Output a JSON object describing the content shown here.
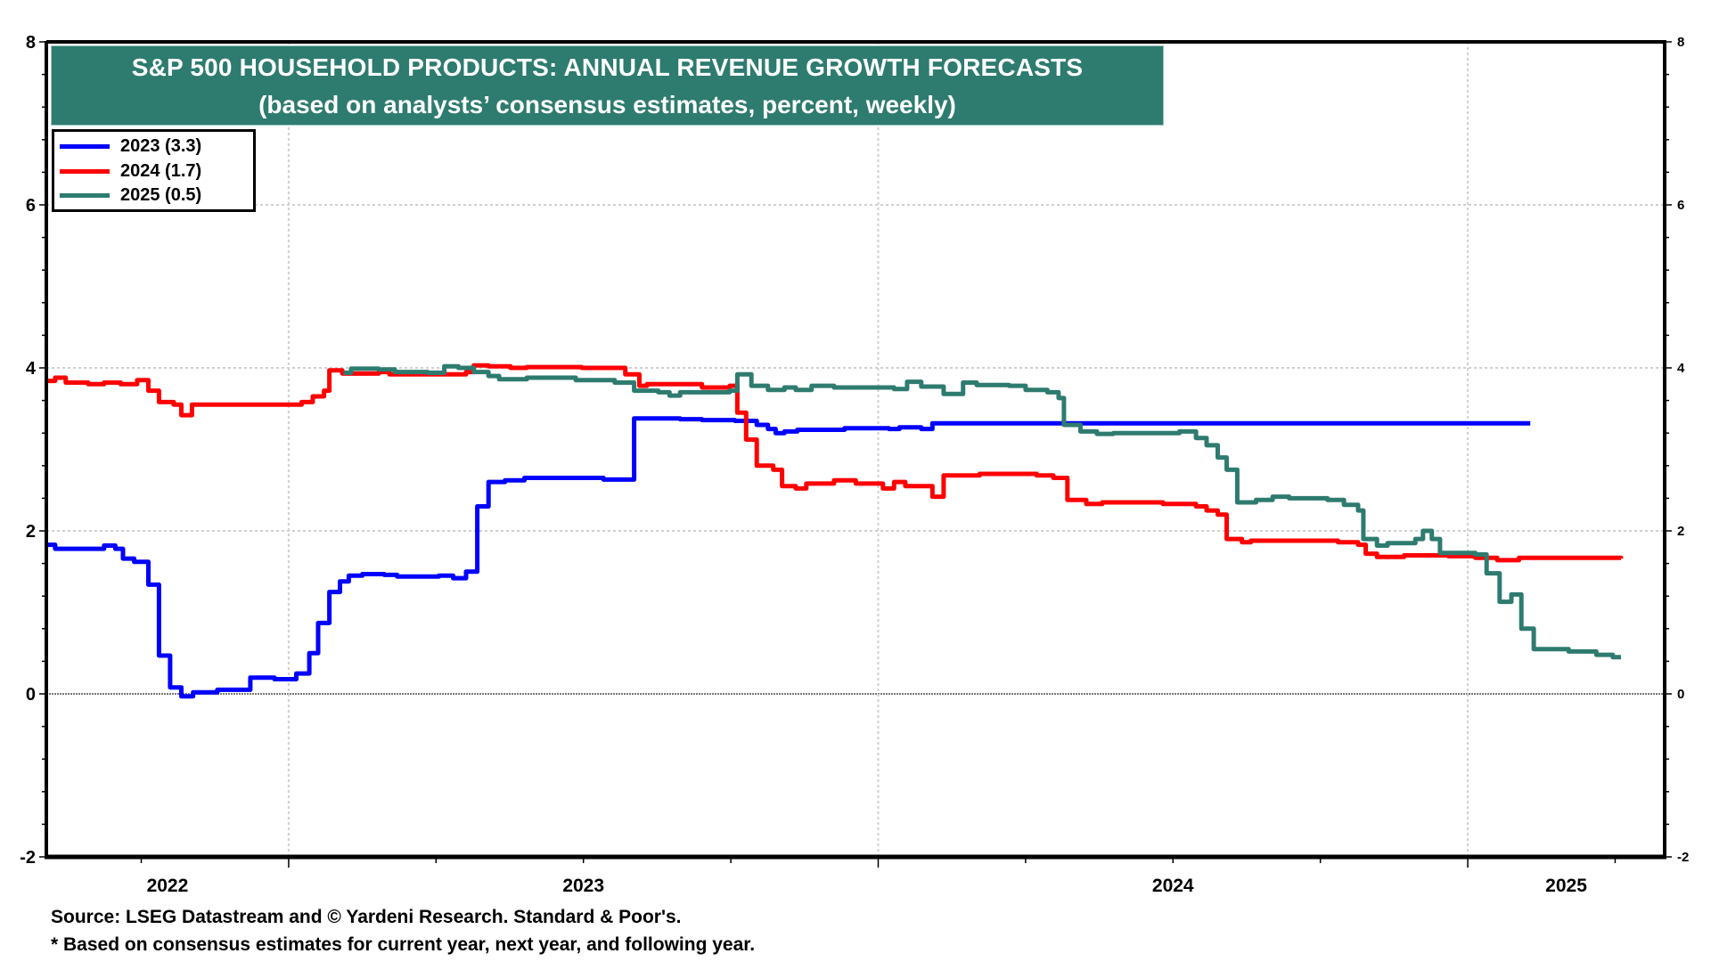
{
  "chart_data": {
    "type": "line",
    "title": "S&P 500 HOUSEHOLD PRODUCTS: ANNUAL REVENUE GROWTH FORECASTS",
    "subtitle": "(based on analysts’ consensus estimates, percent, weekly)",
    "xlabel": "",
    "ylabel": "",
    "x_unit": "year (fractional)",
    "xlim": [
      2022.589,
      2025.334
    ],
    "ylim": [
      -2,
      8
    ],
    "y_ticks": [
      -2,
      0,
      2,
      4,
      6,
      8
    ],
    "y_tick_labels": [
      "-2",
      "0",
      "2",
      "4",
      "6",
      "8"
    ],
    "y_minor_step": 0.4,
    "x_year_boundaries": [
      2023,
      2024,
      2025
    ],
    "x_quarter_ticks": [
      2022.75,
      2023.25,
      2023.5,
      2023.75,
      2024.25,
      2024.5,
      2024.75,
      2025.25
    ],
    "x_tick_labels": [
      {
        "label": "2022",
        "range": [
          2022.589,
          2023.0
        ]
      },
      {
        "label": "2023",
        "range": [
          2023.0,
          2024.0
        ]
      },
      {
        "label": "2024",
        "range": [
          2024.0,
          2025.0
        ]
      },
      {
        "label": "2025",
        "range": [
          2025.0,
          2025.334
        ]
      }
    ],
    "grid": true,
    "zero_line": true,
    "legend_position": "top-left",
    "series": [
      {
        "name": "2023 (3.3)",
        "color": "#0000ff",
        "step": true,
        "points": [
          [
            2022.589,
            1.83
          ],
          [
            2022.604,
            1.78
          ],
          [
            2022.682,
            1.78
          ],
          [
            2022.687,
            1.82
          ],
          [
            2022.702,
            1.82
          ],
          [
            2022.706,
            1.78
          ],
          [
            2022.719,
            1.66
          ],
          [
            2022.738,
            1.62
          ],
          [
            2022.762,
            1.34
          ],
          [
            2022.78,
            0.47
          ],
          [
            2022.799,
            0.08
          ],
          [
            2022.818,
            -0.03
          ],
          [
            2022.838,
            0.02
          ],
          [
            2022.879,
            0.05
          ],
          [
            2022.935,
            0.2
          ],
          [
            2022.976,
            0.18
          ],
          [
            2023.013,
            0.25
          ],
          [
            2023.035,
            0.5
          ],
          [
            2023.05,
            0.87
          ],
          [
            2023.069,
            1.25
          ],
          [
            2023.087,
            1.38
          ],
          [
            2023.102,
            1.45
          ],
          [
            2023.125,
            1.47
          ],
          [
            2023.162,
            1.46
          ],
          [
            2023.184,
            1.44
          ],
          [
            2023.255,
            1.45
          ],
          [
            2023.279,
            1.42
          ],
          [
            2023.301,
            1.5
          ],
          [
            2023.32,
            2.3
          ],
          [
            2023.339,
            2.6
          ],
          [
            2023.367,
            2.62
          ],
          [
            2023.4,
            2.65
          ],
          [
            2023.534,
            2.63
          ],
          [
            2023.586,
            3.38
          ],
          [
            2023.664,
            3.37
          ],
          [
            2023.701,
            3.36
          ],
          [
            2023.757,
            3.35
          ],
          [
            2023.794,
            3.3
          ],
          [
            2023.813,
            3.25
          ],
          [
            2023.826,
            3.2
          ],
          [
            2023.841,
            3.22
          ],
          [
            2023.863,
            3.24
          ],
          [
            2023.943,
            3.26
          ],
          [
            2024.018,
            3.25
          ],
          [
            2024.036,
            3.27
          ],
          [
            2024.073,
            3.25
          ],
          [
            2024.092,
            3.32
          ],
          [
            2025.106,
            3.32
          ]
        ]
      },
      {
        "name": "2024 (1.7)",
        "color": "#ff0000",
        "step": true,
        "points": [
          [
            2022.589,
            3.84
          ],
          [
            2022.604,
            3.88
          ],
          [
            2022.622,
            3.82
          ],
          [
            2022.66,
            3.8
          ],
          [
            2022.687,
            3.82
          ],
          [
            2022.715,
            3.8
          ],
          [
            2022.743,
            3.85
          ],
          [
            2022.762,
            3.72
          ],
          [
            2022.78,
            3.58
          ],
          [
            2022.805,
            3.55
          ],
          [
            2022.818,
            3.42
          ],
          [
            2022.836,
            3.55
          ],
          [
            2023.0,
            3.55
          ],
          [
            2023.022,
            3.58
          ],
          [
            2023.041,
            3.65
          ],
          [
            2023.06,
            3.72
          ],
          [
            2023.069,
            3.97
          ],
          [
            2023.091,
            3.93
          ],
          [
            2023.125,
            3.93
          ],
          [
            2023.153,
            3.95
          ],
          [
            2023.171,
            3.92
          ],
          [
            2023.301,
            3.95
          ],
          [
            2023.314,
            4.03
          ],
          [
            2023.339,
            4.02
          ],
          [
            2023.376,
            4.0
          ],
          [
            2023.404,
            4.01
          ],
          [
            2023.497,
            4.0
          ],
          [
            2023.571,
            3.92
          ],
          [
            2023.595,
            3.78
          ],
          [
            2023.608,
            3.8
          ],
          [
            2023.701,
            3.76
          ],
          [
            2023.748,
            3.78
          ],
          [
            2023.761,
            3.45
          ],
          [
            2023.776,
            3.12
          ],
          [
            2023.794,
            2.8
          ],
          [
            2023.822,
            2.75
          ],
          [
            2023.837,
            2.55
          ],
          [
            2023.86,
            2.52
          ],
          [
            2023.878,
            2.58
          ],
          [
            2023.925,
            2.62
          ],
          [
            2023.962,
            2.58
          ],
          [
            2024.008,
            2.52
          ],
          [
            2024.027,
            2.6
          ],
          [
            2024.046,
            2.55
          ],
          [
            2024.092,
            2.42
          ],
          [
            2024.111,
            2.68
          ],
          [
            2024.148,
            2.68
          ],
          [
            2024.172,
            2.7
          ],
          [
            2024.269,
            2.68
          ],
          [
            2024.297,
            2.65
          ],
          [
            2024.321,
            2.38
          ],
          [
            2024.353,
            2.33
          ],
          [
            2024.38,
            2.35
          ],
          [
            2024.483,
            2.33
          ],
          [
            2024.539,
            2.3
          ],
          [
            2024.557,
            2.25
          ],
          [
            2024.576,
            2.2
          ],
          [
            2024.591,
            1.9
          ],
          [
            2024.617,
            1.86
          ],
          [
            2024.632,
            1.88
          ],
          [
            2024.78,
            1.86
          ],
          [
            2024.814,
            1.83
          ],
          [
            2024.827,
            1.72
          ],
          [
            2024.846,
            1.68
          ],
          [
            2024.892,
            1.7
          ],
          [
            2024.967,
            1.69
          ],
          [
            2025.013,
            1.67
          ],
          [
            2025.05,
            1.64
          ],
          [
            2025.087,
            1.67
          ],
          [
            2025.26,
            1.66
          ]
        ]
      },
      {
        "name": "2025 (0.5)",
        "color": "#2e7b6f",
        "step": true,
        "points": [
          [
            2023.093,
            3.94
          ],
          [
            2023.106,
            3.99
          ],
          [
            2023.153,
            3.98
          ],
          [
            2023.18,
            3.95
          ],
          [
            2023.236,
            3.94
          ],
          [
            2023.264,
            4.02
          ],
          [
            2023.288,
            4.0
          ],
          [
            2023.314,
            3.95
          ],
          [
            2023.339,
            3.9
          ],
          [
            2023.357,
            3.86
          ],
          [
            2023.404,
            3.88
          ],
          [
            2023.487,
            3.85
          ],
          [
            2023.553,
            3.82
          ],
          [
            2023.586,
            3.72
          ],
          [
            2023.627,
            3.7
          ],
          [
            2023.646,
            3.66
          ],
          [
            2023.664,
            3.7
          ],
          [
            2023.748,
            3.72
          ],
          [
            2023.761,
            3.92
          ],
          [
            2023.785,
            3.78
          ],
          [
            2023.813,
            3.73
          ],
          [
            2023.841,
            3.76
          ],
          [
            2023.86,
            3.73
          ],
          [
            2023.887,
            3.78
          ],
          [
            2023.925,
            3.76
          ],
          [
            2023.999,
            3.76
          ],
          [
            2024.027,
            3.74
          ],
          [
            2024.049,
            3.83
          ],
          [
            2024.073,
            3.77
          ],
          [
            2024.111,
            3.68
          ],
          [
            2024.144,
            3.82
          ],
          [
            2024.167,
            3.79
          ],
          [
            2024.222,
            3.78
          ],
          [
            2024.25,
            3.73
          ],
          [
            2024.287,
            3.7
          ],
          [
            2024.306,
            3.63
          ],
          [
            2024.315,
            3.3
          ],
          [
            2024.343,
            3.22
          ],
          [
            2024.371,
            3.19
          ],
          [
            2024.399,
            3.2
          ],
          [
            2024.464,
            3.2
          ],
          [
            2024.511,
            3.22
          ],
          [
            2024.539,
            3.14
          ],
          [
            2024.557,
            3.05
          ],
          [
            2024.576,
            2.9
          ],
          [
            2024.591,
            2.75
          ],
          [
            2024.609,
            2.35
          ],
          [
            2024.641,
            2.38
          ],
          [
            2024.669,
            2.42
          ],
          [
            2024.697,
            2.4
          ],
          [
            2024.762,
            2.38
          ],
          [
            2024.79,
            2.32
          ],
          [
            2024.814,
            2.25
          ],
          [
            2024.823,
            1.9
          ],
          [
            2024.846,
            1.82
          ],
          [
            2024.864,
            1.85
          ],
          [
            2024.911,
            1.9
          ],
          [
            2024.924,
            2.0
          ],
          [
            2024.939,
            1.9
          ],
          [
            2024.953,
            1.73
          ],
          [
            2025.013,
            1.71
          ],
          [
            2025.032,
            1.48
          ],
          [
            2025.054,
            1.13
          ],
          [
            2025.074,
            1.22
          ],
          [
            2025.091,
            0.8
          ],
          [
            2025.112,
            0.55
          ],
          [
            2025.171,
            0.52
          ],
          [
            2025.218,
            0.48
          ],
          [
            2025.246,
            0.45
          ],
          [
            2025.26,
            0.45
          ]
        ]
      }
    ]
  },
  "title_box": {
    "line1": "S&P 500 HOUSEHOLD PRODUCTS: ANNUAL REVENUE GROWTH FORECASTS",
    "line2": "(based on analysts’ consensus estimates, percent, weekly)",
    "background": "#2e7b6f"
  },
  "legend": {
    "items": [
      {
        "label": "2023 (3.3)",
        "color": "#0000ff"
      },
      {
        "label": "2024 (1.7)",
        "color": "#ff0000"
      },
      {
        "label": "2025 (0.5)",
        "color": "#2e7b6f"
      }
    ]
  },
  "footer": {
    "source": "Source: LSEG Datastream and © Yardeni Research. Standard & Poor's.",
    "note": "* Based on consensus estimates for current year, next year, and following year."
  }
}
